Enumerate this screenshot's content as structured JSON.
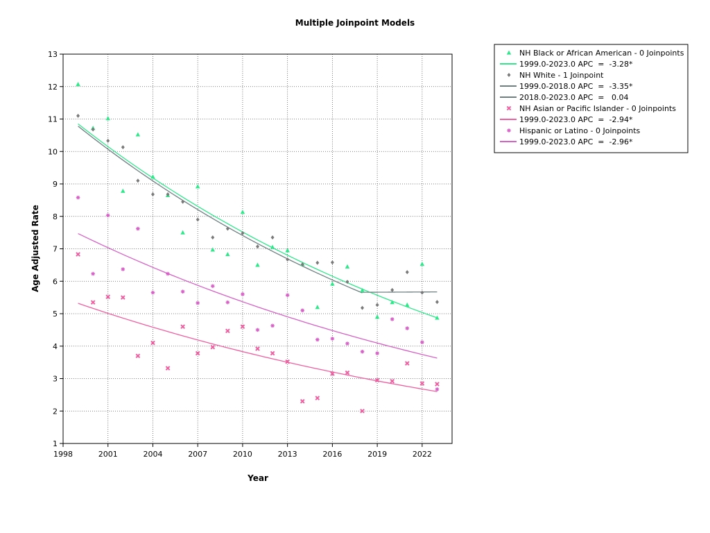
{
  "chart_data": {
    "type": "scatter",
    "title": "Multiple Joinpoint Models",
    "xlabel": "Year",
    "ylabel": "Age Adjusted Rate",
    "xlim": [
      1998,
      2024
    ],
    "ylim": [
      1,
      13
    ],
    "x_ticks": [
      1998,
      2001,
      2004,
      2007,
      2010,
      2013,
      2016,
      2019,
      2022
    ],
    "y_ticks": [
      1,
      2,
      3,
      4,
      5,
      6,
      7,
      8,
      9,
      10,
      11,
      12,
      13
    ],
    "grid": true,
    "legend_position": "right",
    "series": [
      {
        "name": "NH Black or African American - 0 Joinpoints",
        "color": "#2ee88a",
        "marker": "triangle",
        "points": [
          [
            1999,
            12.07
          ],
          [
            2000,
            10.72
          ],
          [
            2001,
            11.02
          ],
          [
            2002,
            8.78
          ],
          [
            2003,
            10.52
          ],
          [
            2004,
            9.22
          ],
          [
            2005,
            8.65
          ],
          [
            2006,
            7.5
          ],
          [
            2007,
            8.92
          ],
          [
            2008,
            6.97
          ],
          [
            2009,
            6.83
          ],
          [
            2010,
            8.13
          ],
          [
            2011,
            6.5
          ],
          [
            2012,
            7.05
          ],
          [
            2013,
            6.95
          ],
          [
            2014,
            6.53
          ],
          [
            2015,
            5.2
          ],
          [
            2016,
            5.92
          ],
          [
            2017,
            6.45
          ],
          [
            2018,
            5.72
          ],
          [
            2019,
            4.9
          ],
          [
            2020,
            5.35
          ],
          [
            2021,
            5.27
          ],
          [
            2022,
            6.53
          ],
          [
            2023,
            4.87
          ]
        ],
        "fits": [
          {
            "label": "1999.0-2023.0 APC  =  -3.28*",
            "from": 1999,
            "to": 2023,
            "start_value": 10.85,
            "apc": -3.28
          }
        ]
      },
      {
        "name": "NH White - 1 Joinpoint",
        "color": "#7a7a7a",
        "line_color": "#6e7f80",
        "marker": "diamond",
        "points": [
          [
            1999,
            11.1
          ],
          [
            2000,
            10.68
          ],
          [
            2001,
            10.33
          ],
          [
            2002,
            10.13
          ],
          [
            2003,
            9.1
          ],
          [
            2004,
            8.68
          ],
          [
            2005,
            8.68
          ],
          [
            2006,
            8.45
          ],
          [
            2007,
            7.9
          ],
          [
            2008,
            7.35
          ],
          [
            2009,
            7.62
          ],
          [
            2010,
            7.48
          ],
          [
            2011,
            7.07
          ],
          [
            2012,
            7.35
          ],
          [
            2013,
            6.67
          ],
          [
            2014,
            6.52
          ],
          [
            2015,
            6.57
          ],
          [
            2016,
            6.58
          ],
          [
            2017,
            5.98
          ],
          [
            2018,
            5.18
          ],
          [
            2019,
            5.27
          ],
          [
            2020,
            5.73
          ],
          [
            2021,
            6.28
          ],
          [
            2022,
            5.65
          ],
          [
            2023,
            5.36
          ]
        ],
        "fits": [
          {
            "label": "1999.0-2018.0 APC  =  -3.35*",
            "from": 1999,
            "to": 2018,
            "start_value": 10.78,
            "apc": -3.35
          },
          {
            "label": "2018.0-2023.0 APC  =   0.04",
            "from": 2018,
            "to": 2023,
            "start_value": 5.66,
            "apc": 0.04
          }
        ]
      },
      {
        "name": "NH Asian or Pacific Islander - 0 Joinpoints",
        "color": "#ef5fa0",
        "marker": "x",
        "points": [
          [
            1999,
            6.83
          ],
          [
            2000,
            5.35
          ],
          [
            2001,
            5.52
          ],
          [
            2002,
            5.5
          ],
          [
            2003,
            3.7
          ],
          [
            2004,
            4.1
          ],
          [
            2005,
            3.32
          ],
          [
            2006,
            4.6
          ],
          [
            2007,
            3.78
          ],
          [
            2008,
            3.97
          ],
          [
            2009,
            4.47
          ],
          [
            2010,
            4.6
          ],
          [
            2011,
            3.92
          ],
          [
            2012,
            3.78
          ],
          [
            2013,
            3.52
          ],
          [
            2014,
            2.3
          ],
          [
            2015,
            2.4
          ],
          [
            2016,
            3.15
          ],
          [
            2017,
            3.18
          ],
          [
            2018,
            2.0
          ],
          [
            2019,
            2.95
          ],
          [
            2020,
            2.92
          ],
          [
            2021,
            3.47
          ],
          [
            2022,
            2.85
          ],
          [
            2023,
            2.83
          ]
        ],
        "fits": [
          {
            "label": "1999.0-2023.0 APC  =  -2.94*",
            "from": 1999,
            "to": 2023,
            "start_value": 5.32,
            "apc": -2.94
          }
        ]
      },
      {
        "name": "Hispanic or Latino - 0 Joinpoints",
        "color": "#d661c6",
        "marker": "star",
        "points": [
          [
            1999,
            8.58
          ],
          [
            2000,
            6.23
          ],
          [
            2001,
            8.03
          ],
          [
            2002,
            6.37
          ],
          [
            2003,
            7.62
          ],
          [
            2004,
            5.65
          ],
          [
            2005,
            6.23
          ],
          [
            2006,
            5.68
          ],
          [
            2007,
            5.33
          ],
          [
            2008,
            5.85
          ],
          [
            2009,
            5.35
          ],
          [
            2010,
            5.6
          ],
          [
            2011,
            4.5
          ],
          [
            2012,
            4.63
          ],
          [
            2013,
            5.57
          ],
          [
            2014,
            5.1
          ],
          [
            2015,
            4.2
          ],
          [
            2016,
            4.23
          ],
          [
            2017,
            4.08
          ],
          [
            2018,
            3.83
          ],
          [
            2019,
            3.78
          ],
          [
            2020,
            4.83
          ],
          [
            2021,
            4.55
          ],
          [
            2022,
            4.12
          ],
          [
            2023,
            2.67
          ]
        ],
        "fits": [
          {
            "label": "1999.0-2023.0 APC  =  -2.96*",
            "from": 1999,
            "to": 2023,
            "start_value": 7.47,
            "apc": -2.96
          }
        ]
      }
    ]
  }
}
